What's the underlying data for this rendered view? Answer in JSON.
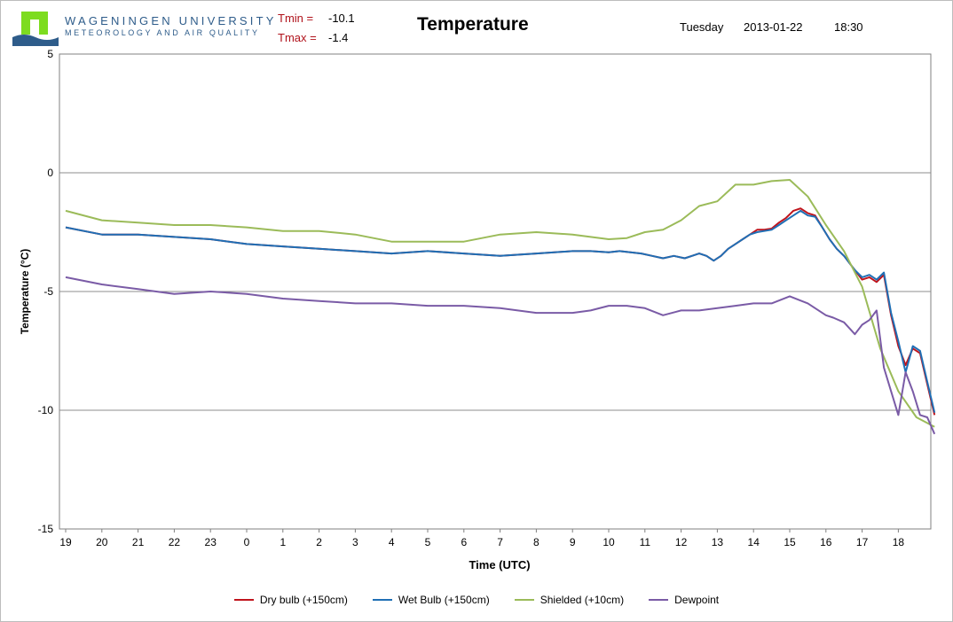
{
  "header": {
    "university": "WAGENINGEN UNIVERSITY",
    "department": "METEOROLOGY AND AIR QUALITY",
    "tmin_label": "Tmin =",
    "tmin_value": "-10.1",
    "tmax_label": "Tmax =",
    "tmax_value": "-1.4",
    "title": "Temperature",
    "weekday": "Tuesday",
    "date": "2013-01-22",
    "time": "18:30"
  },
  "colors": {
    "dry_bulb": "#c0141c",
    "wet_bulb": "#1f6fb5",
    "shielded": "#9bbb59",
    "dewpoint": "#7a5ba6",
    "logo_green": "#7ddc1f",
    "logo_blue": "#2e5c8a"
  },
  "chart_data": {
    "type": "line",
    "title": "Temperature",
    "xlabel": "Time (UTC)",
    "ylabel": "Temperature (°C)",
    "xlim": [
      0,
      24
    ],
    "ylim": [
      -15,
      5
    ],
    "yticks": [
      5,
      0,
      -5,
      -10,
      -15
    ],
    "xtick_labels": [
      "19",
      "20",
      "21",
      "22",
      "23",
      "0",
      "1",
      "2",
      "3",
      "4",
      "5",
      "6",
      "7",
      "8",
      "9",
      "10",
      "11",
      "12",
      "13",
      "14",
      "15",
      "16",
      "17",
      "18"
    ],
    "grid": "horizontal",
    "legend_position": "bottom",
    "series": [
      {
        "key": "dry",
        "name": "Dry bulb (+150cm)",
        "color": "#c0141c",
        "x": [
          0,
          1,
          2,
          3,
          4,
          5,
          6,
          7,
          8,
          9,
          10,
          11,
          12,
          13,
          14,
          14.5,
          15,
          15.3,
          15.6,
          15.9,
          16.2,
          16.5,
          16.8,
          17.1,
          17.3,
          17.5,
          17.7,
          17.9,
          18.1,
          18.3,
          18.5,
          18.7,
          18.9,
          19.1,
          19.3,
          19.5,
          19.7,
          19.9,
          20.1,
          20.3,
          20.5,
          20.7,
          20.9,
          21.1,
          21.3,
          21.5,
          21.8,
          22,
          22.2,
          22.4,
          22.6,
          22.8,
          23,
          23.2,
          23.4,
          23.6,
          23.8,
          24
        ],
        "y": [
          -2.3,
          -2.6,
          -2.6,
          -2.7,
          -2.8,
          -3,
          -3.1,
          -3.2,
          -3.3,
          -3.4,
          -3.3,
          -3.4,
          -3.5,
          -3.4,
          -3.3,
          -3.3,
          -3.35,
          -3.3,
          -3.35,
          -3.4,
          -3.5,
          -3.6,
          -3.5,
          -3.6,
          -3.5,
          -3.4,
          -3.5,
          -3.7,
          -3.5,
          -3.2,
          -3,
          -2.8,
          -2.6,
          -2.4,
          -2.4,
          -2.35,
          -2.1,
          -1.9,
          -1.6,
          -1.5,
          -1.7,
          -1.8,
          -2.3,
          -2.8,
          -3.2,
          -3.5,
          -4.1,
          -4.5,
          -4.4,
          -4.6,
          -4.3,
          -6,
          -7.3,
          -8.1,
          -7.4,
          -7.6,
          -8.9,
          -10.2
        ]
      },
      {
        "key": "wet",
        "name": "Wet Bulb (+150cm)",
        "color": "#1f6fb5",
        "x": [
          0,
          1,
          2,
          3,
          4,
          5,
          6,
          7,
          8,
          9,
          10,
          11,
          12,
          13,
          14,
          14.5,
          15,
          15.3,
          15.6,
          15.9,
          16.2,
          16.5,
          16.8,
          17.1,
          17.3,
          17.5,
          17.7,
          17.9,
          18.1,
          18.3,
          18.5,
          18.7,
          18.9,
          19.1,
          19.3,
          19.5,
          19.7,
          19.9,
          20.1,
          20.3,
          20.5,
          20.7,
          20.9,
          21.1,
          21.3,
          21.5,
          21.8,
          22,
          22.2,
          22.4,
          22.6,
          22.8,
          23,
          23.2,
          23.4,
          23.6,
          23.8,
          24
        ],
        "y": [
          -2.3,
          -2.6,
          -2.6,
          -2.7,
          -2.8,
          -3,
          -3.1,
          -3.2,
          -3.3,
          -3.4,
          -3.3,
          -3.4,
          -3.5,
          -3.4,
          -3.3,
          -3.3,
          -3.35,
          -3.3,
          -3.35,
          -3.4,
          -3.5,
          -3.6,
          -3.5,
          -3.6,
          -3.5,
          -3.4,
          -3.5,
          -3.7,
          -3.5,
          -3.2,
          -3,
          -2.8,
          -2.6,
          -2.5,
          -2.45,
          -2.4,
          -2.2,
          -2,
          -1.8,
          -1.6,
          -1.8,
          -1.85,
          -2.3,
          -2.8,
          -3.2,
          -3.5,
          -4.1,
          -4.4,
          -4.3,
          -4.5,
          -4.2,
          -5.9,
          -7.1,
          -8.4,
          -7.3,
          -7.5,
          -8.8,
          -10.1
        ]
      },
      {
        "key": "shielded",
        "name": "Shielded (+10cm)",
        "color": "#9bbb59",
        "x": [
          0,
          1,
          2,
          3,
          4,
          5,
          6,
          7,
          8,
          9,
          10,
          11,
          12,
          13,
          14,
          14.5,
          15,
          15.5,
          16,
          16.5,
          17,
          17.5,
          18,
          18.5,
          19,
          19.5,
          20,
          20.5,
          21,
          21.5,
          22,
          22.5,
          23,
          23.5,
          24
        ],
        "y": [
          -1.6,
          -2,
          -2.1,
          -2.2,
          -2.2,
          -2.3,
          -2.45,
          -2.45,
          -2.6,
          -2.9,
          -2.9,
          -2.9,
          -2.6,
          -2.5,
          -2.6,
          -2.7,
          -2.8,
          -2.75,
          -2.5,
          -2.4,
          -2,
          -1.4,
          -1.2,
          -0.5,
          -0.5,
          -0.35,
          -0.3,
          -1,
          -2.2,
          -3.3,
          -4.8,
          -7.4,
          -9.2,
          -10.3,
          -10.7
        ]
      },
      {
        "key": "dew",
        "name": "Dewpoint",
        "color": "#7a5ba6",
        "x": [
          0,
          1,
          2,
          3,
          4,
          5,
          6,
          7,
          8,
          9,
          10,
          11,
          12,
          13,
          14,
          14.5,
          15,
          15.5,
          16,
          16.5,
          17,
          17.5,
          18,
          18.5,
          19,
          19.5,
          20,
          20.5,
          21,
          21.2,
          21.5,
          21.8,
          22,
          22.2,
          22.4,
          22.6,
          22.8,
          23,
          23.2,
          23.4,
          23.6,
          23.8,
          24
        ],
        "y": [
          -4.4,
          -4.7,
          -4.9,
          -5.1,
          -5,
          -5.1,
          -5.3,
          -5.4,
          -5.5,
          -5.5,
          -5.6,
          -5.6,
          -5.7,
          -5.9,
          -5.9,
          -5.8,
          -5.6,
          -5.6,
          -5.7,
          -6,
          -5.8,
          -5.8,
          -5.7,
          -5.6,
          -5.5,
          -5.5,
          -5.2,
          -5.5,
          -6,
          -6.1,
          -6.3,
          -6.8,
          -6.4,
          -6.2,
          -5.8,
          -8.2,
          -9.2,
          -10.2,
          -8.4,
          -9.2,
          -10.2,
          -10.3,
          -11
        ]
      }
    ]
  }
}
